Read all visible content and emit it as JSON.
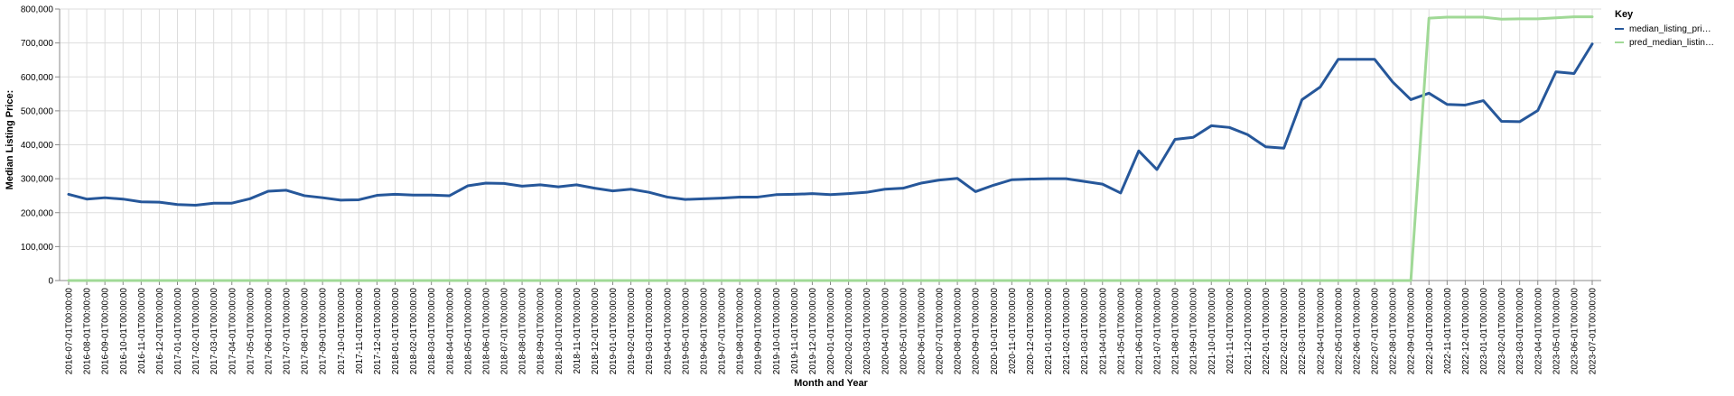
{
  "chart_data": {
    "type": "line",
    "title": "",
    "xlabel": "Month and Year",
    "ylabel": "Median Listing Price:",
    "ylim": [
      0,
      800000
    ],
    "yticks": [
      0,
      100000,
      200000,
      300000,
      400000,
      500000,
      600000,
      700000,
      800000
    ],
    "ytick_labels": [
      "0",
      "100,000",
      "200,000",
      "300,000",
      "400,000",
      "500,000",
      "600,000",
      "700,000",
      "800,000"
    ],
    "grid": true,
    "legend": {
      "title": "Key",
      "position": "right"
    },
    "x": [
      "2016-07-01T00:00:00",
      "2016-08-01T00:00:00",
      "2016-09-01T00:00:00",
      "2016-10-01T00:00:00",
      "2016-11-01T00:00:00",
      "2016-12-01T00:00:00",
      "2017-01-01T00:00:00",
      "2017-02-01T00:00:00",
      "2017-03-01T00:00:00",
      "2017-04-01T00:00:00",
      "2017-05-01T00:00:00",
      "2017-06-01T00:00:00",
      "2017-07-01T00:00:00",
      "2017-08-01T00:00:00",
      "2017-09-01T00:00:00",
      "2017-10-01T00:00:00",
      "2017-11-01T00:00:00",
      "2017-12-01T00:00:00",
      "2018-01-01T00:00:00",
      "2018-02-01T00:00:00",
      "2018-03-01T00:00:00",
      "2018-04-01T00:00:00",
      "2018-05-01T00:00:00",
      "2018-06-01T00:00:00",
      "2018-07-01T00:00:00",
      "2018-08-01T00:00:00",
      "2018-09-01T00:00:00",
      "2018-10-01T00:00:00",
      "2018-11-01T00:00:00",
      "2018-12-01T00:00:00",
      "2019-01-01T00:00:00",
      "2019-02-01T00:00:00",
      "2019-03-01T00:00:00",
      "2019-04-01T00:00:00",
      "2019-05-01T00:00:00",
      "2019-06-01T00:00:00",
      "2019-07-01T00:00:00",
      "2019-08-01T00:00:00",
      "2019-09-01T00:00:00",
      "2019-10-01T00:00:00",
      "2019-11-01T00:00:00",
      "2019-12-01T00:00:00",
      "2020-01-01T00:00:00",
      "2020-02-01T00:00:00",
      "2020-03-01T00:00:00",
      "2020-04-01T00:00:00",
      "2020-05-01T00:00:00",
      "2020-06-01T00:00:00",
      "2020-07-01T00:00:00",
      "2020-08-01T00:00:00",
      "2020-09-01T00:00:00",
      "2020-10-01T00:00:00",
      "2020-11-01T00:00:00",
      "2020-12-01T00:00:00",
      "2021-01-01T00:00:00",
      "2021-02-01T00:00:00",
      "2021-03-01T00:00:00",
      "2021-04-01T00:00:00",
      "2021-05-01T00:00:00",
      "2021-06-01T00:00:00",
      "2021-07-01T00:00:00",
      "2021-08-01T00:00:00",
      "2021-09-01T00:00:00",
      "2021-10-01T00:00:00",
      "2021-11-01T00:00:00",
      "2021-12-01T00:00:00",
      "2022-01-01T00:00:00",
      "2022-02-01T00:00:00",
      "2022-03-01T00:00:00",
      "2022-04-01T00:00:00",
      "2022-05-01T00:00:00",
      "2022-06-01T00:00:00",
      "2022-07-01T00:00:00",
      "2022-08-01T00:00:00",
      "2022-09-01T00:00:00",
      "2022-10-01T00:00:00",
      "2022-11-01T00:00:00",
      "2022-12-01T00:00:00",
      "2023-01-01T00:00:00",
      "2023-02-01T00:00:00",
      "2023-03-01T00:00:00",
      "2023-04-01T00:00:00",
      "2023-05-01T00:00:00",
      "2023-06-01T00:00:00",
      "2023-07-01T00:00:00"
    ],
    "series": [
      {
        "name": "median_listing_pri…",
        "color": "#26579a",
        "values": [
          254000,
          240000,
          244000,
          240000,
          232000,
          231000,
          224000,
          222000,
          228000,
          228000,
          241000,
          263000,
          266000,
          250000,
          244000,
          237000,
          238000,
          251000,
          254000,
          252000,
          252000,
          250000,
          279000,
          287000,
          286000,
          278000,
          282000,
          276000,
          282000,
          272000,
          264000,
          269000,
          260000,
          246000,
          239000,
          241000,
          243000,
          246000,
          246000,
          253000,
          254000,
          256000,
          253000,
          256000,
          260000,
          269000,
          272000,
          287000,
          296000,
          301000,
          262000,
          281000,
          297000,
          299000,
          300000,
          300000,
          292000,
          284000,
          258000,
          382000,
          327000,
          416000,
          422000,
          456000,
          451000,
          430000,
          394000,
          390000,
          533000,
          570000,
          652000,
          652000,
          652000,
          585000,
          533000,
          552000,
          519000,
          517000,
          530000,
          469000,
          468000,
          501000,
          615000,
          610000,
          697000
        ]
      },
      {
        "name": "pred_median_listin…",
        "color": "#a0d996",
        "values": [
          0,
          0,
          0,
          0,
          0,
          0,
          0,
          0,
          0,
          0,
          0,
          0,
          0,
          0,
          0,
          0,
          0,
          0,
          0,
          0,
          0,
          0,
          0,
          0,
          0,
          0,
          0,
          0,
          0,
          0,
          0,
          0,
          0,
          0,
          0,
          0,
          0,
          0,
          0,
          0,
          0,
          0,
          0,
          0,
          0,
          0,
          0,
          0,
          0,
          0,
          0,
          0,
          0,
          0,
          0,
          0,
          0,
          0,
          0,
          0,
          0,
          0,
          0,
          0,
          0,
          0,
          0,
          0,
          0,
          0,
          0,
          0,
          0,
          0,
          0,
          773000,
          776000,
          776000,
          776000,
          770000,
          771000,
          771000,
          774000,
          777000,
          777000
        ]
      }
    ]
  }
}
